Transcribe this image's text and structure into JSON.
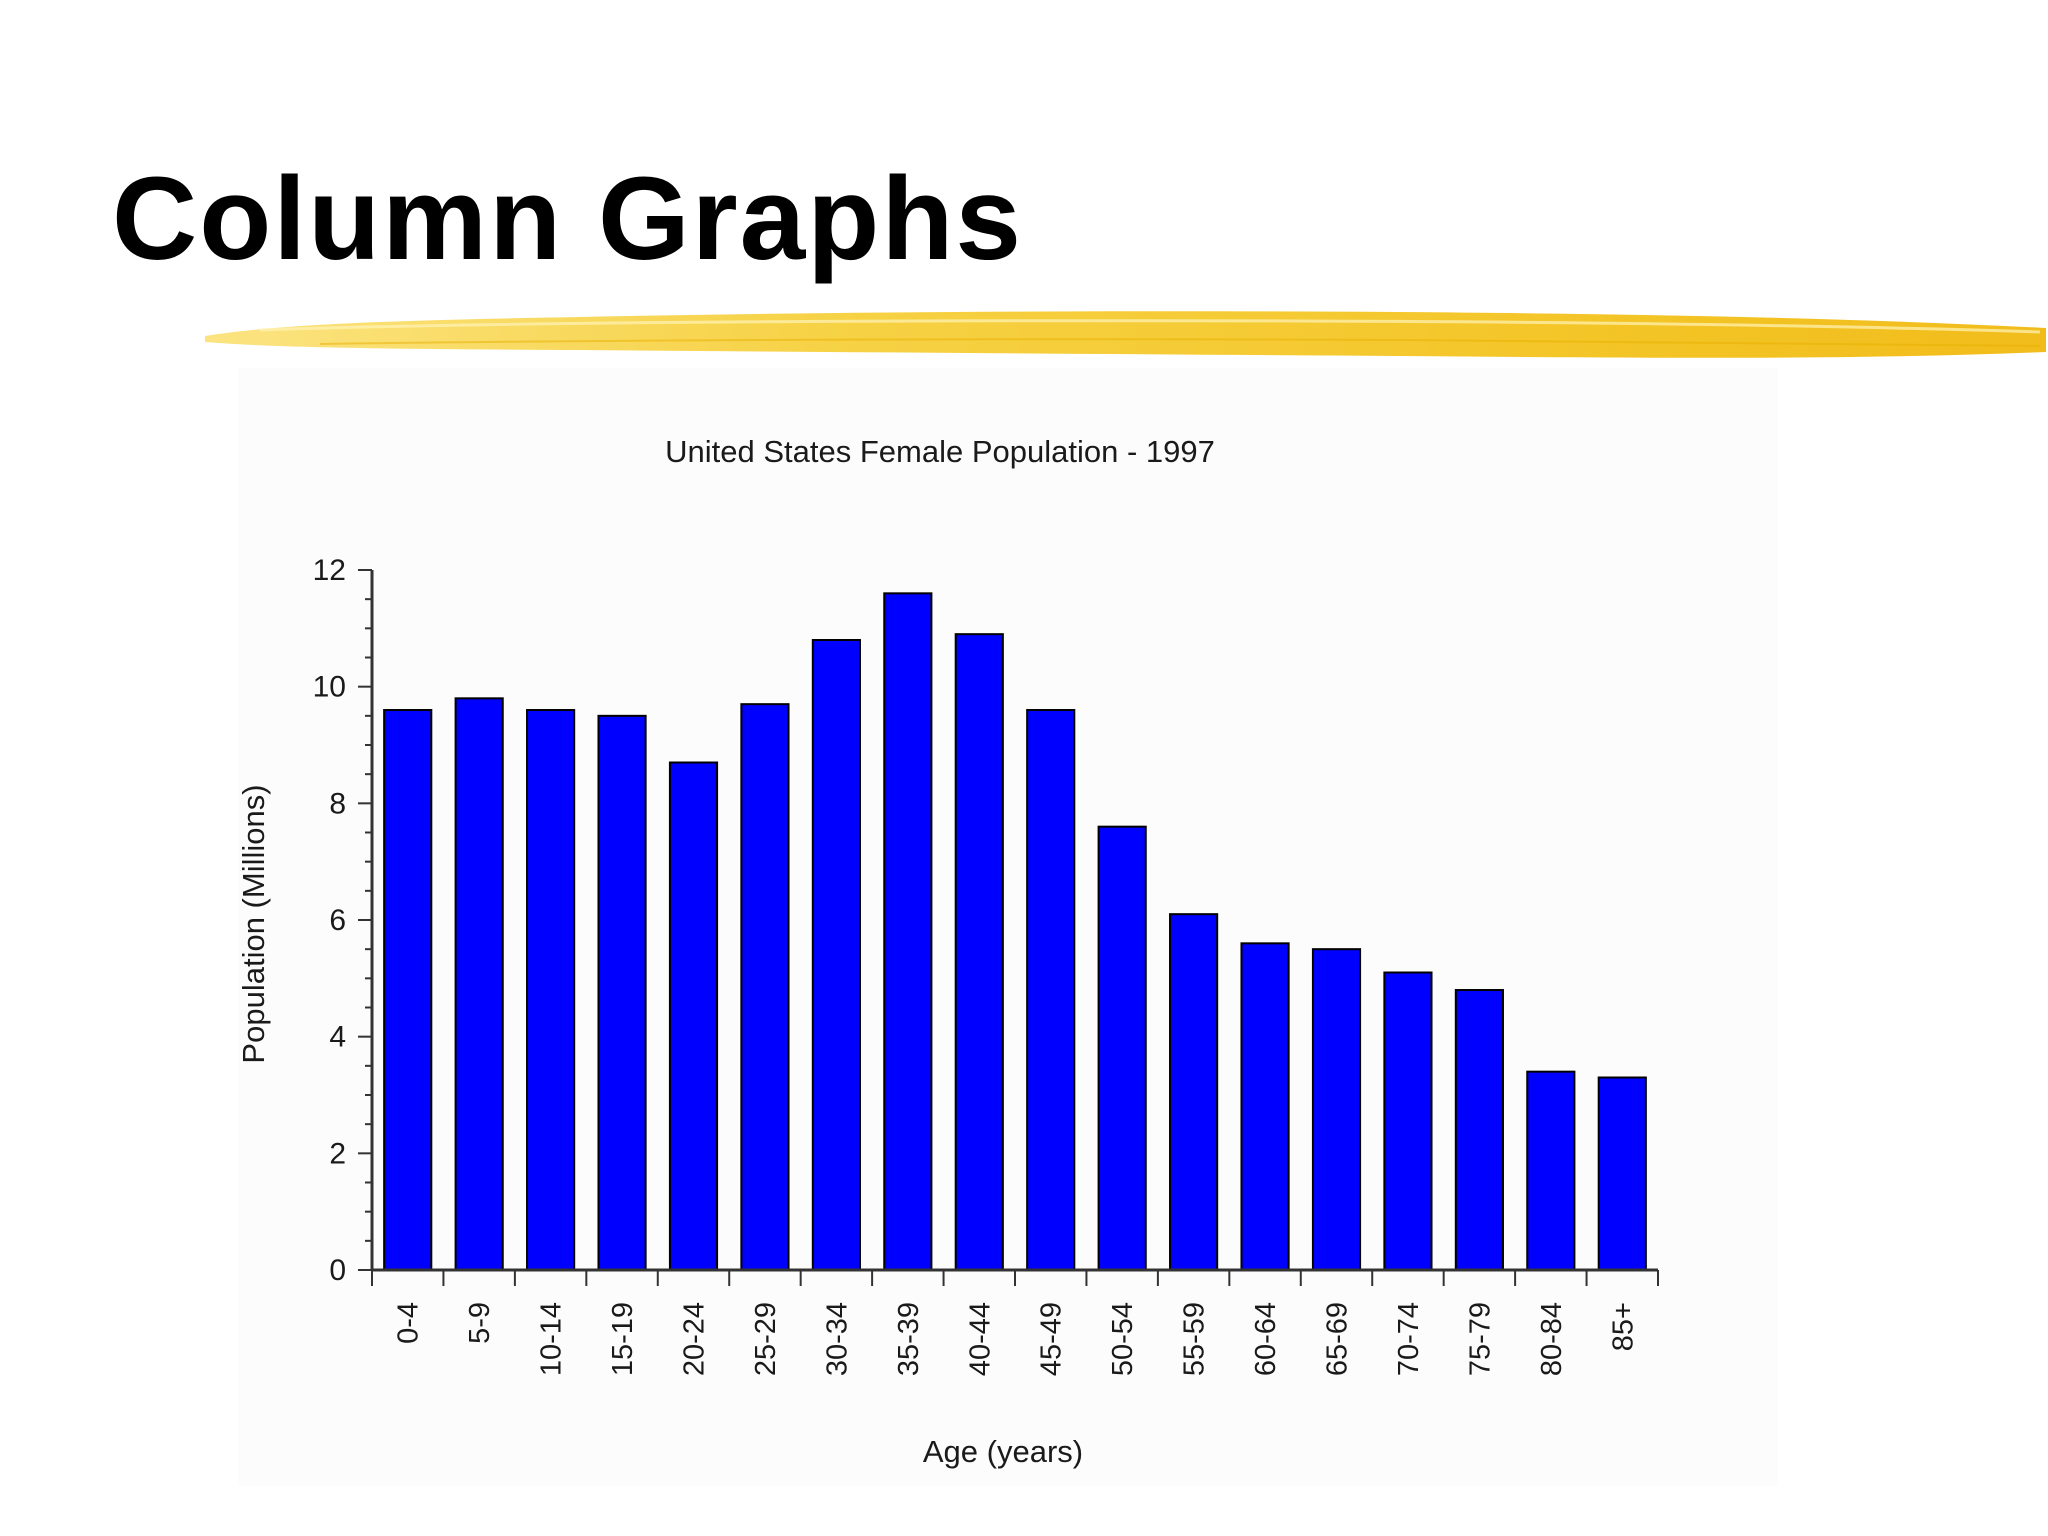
{
  "slide": {
    "title": "Column Graphs"
  },
  "colors": {
    "accent_underline": "#f5c518",
    "bar_fill": "#0000ff",
    "bar_outline": "#000000"
  },
  "chart_data": {
    "type": "bar",
    "title": "United States Female Population - 1997",
    "xlabel": "Age (years)",
    "ylabel": "Population (Millions)",
    "ylim": [
      0,
      12
    ],
    "yticks": [
      0,
      2,
      4,
      6,
      8,
      10,
      12
    ],
    "grid": false,
    "categories": [
      "0-4",
      "5-9",
      "10-14",
      "15-19",
      "20-24",
      "25-29",
      "30-34",
      "35-39",
      "40-44",
      "45-49",
      "50-54",
      "55-59",
      "60-64",
      "65-69",
      "70-74",
      "75-79",
      "80-84",
      "85+"
    ],
    "values": [
      9.6,
      9.8,
      9.6,
      9.5,
      8.7,
      9.7,
      10.8,
      11.6,
      10.9,
      9.6,
      7.6,
      6.1,
      5.6,
      5.5,
      5.1,
      4.8,
      3.4,
      3.3
    ]
  }
}
